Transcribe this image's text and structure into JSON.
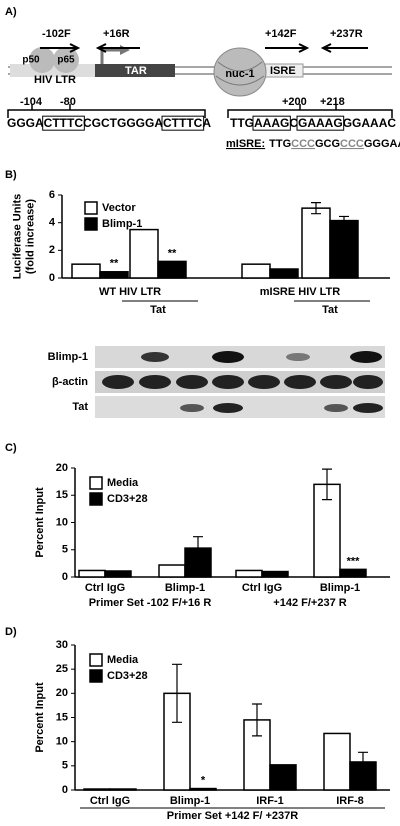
{
  "panels": [
    "A)",
    "B)",
    "C)",
    "D)"
  ],
  "diagram": {
    "primers": [
      "-102F",
      "+16R",
      "+142F",
      "+237R"
    ],
    "factors": [
      "p50",
      "p65"
    ],
    "elements": [
      "HIV LTR",
      "TAR",
      "nuc-1",
      "ISRE"
    ],
    "positions": [
      "-104",
      "-80",
      "+200",
      "+218"
    ],
    "sequence_ltr": [
      "GGGA",
      "CTTTC",
      "CGCTGGGGA",
      "CTTTC",
      "A"
    ],
    "sequence_isre": [
      "TTG",
      "AAAG",
      "C",
      "GAAAG",
      "GGAAAC"
    ],
    "mutant_label": "mISRE:",
    "mutant_sequence": [
      "TTG",
      "CCC",
      "GCG",
      "CCC",
      "GGGAAAC"
    ]
  },
  "blot": {
    "rows": [
      "Blimp-1",
      "β-actin",
      "Tat"
    ]
  },
  "chart_data": [
    {
      "type": "bar",
      "ylabel": [
        "Luciferase Units",
        "(fold increase)"
      ],
      "categories": [
        null,
        "Tat",
        null,
        "Tat"
      ],
      "group_labels": [
        "WT HIV LTR",
        "mISRE HIV LTR"
      ],
      "series": [
        {
          "name": "Vector",
          "color": "#ffffff",
          "values": [
            1,
            3.5,
            1,
            5.05
          ],
          "errors": [
            null,
            null,
            null,
            0.4
          ],
          "annotations": [
            null,
            null,
            null,
            null
          ]
        },
        {
          "name": "Blimp-1",
          "color": "#000000",
          "values": [
            0.45,
            1.2,
            0.65,
            4.15
          ],
          "errors": [
            null,
            null,
            null,
            0.3
          ],
          "annotations": [
            "**",
            "**",
            null,
            null
          ]
        }
      ],
      "ylim": [
        0,
        6
      ],
      "yticks": [
        0,
        2,
        4,
        6
      ]
    },
    {
      "type": "bar",
      "ylabel": [
        "Percent Input"
      ],
      "categories": [
        "Ctrl IgG",
        "Blimp-1",
        "Ctrl IgG",
        "Blimp-1"
      ],
      "group_labels": [
        "Primer Set -102 F/+16 R",
        "+142 F/+237 R"
      ],
      "series": [
        {
          "name": "Media",
          "color": "#ffffff",
          "values": [
            1.2,
            2.2,
            1.2,
            17
          ],
          "errors": [
            null,
            null,
            null,
            2.8
          ],
          "annotations": [
            null,
            null,
            null,
            null
          ]
        },
        {
          "name": "CD3+28",
          "color": "#000000",
          "values": [
            1.1,
            5.3,
            1.0,
            1.4
          ],
          "errors": [
            null,
            2.1,
            null,
            null
          ],
          "annotations": [
            null,
            null,
            null,
            "***"
          ]
        }
      ],
      "ylim": [
        0,
        20
      ],
      "yticks": [
        0,
        5,
        10,
        15,
        20
      ]
    },
    {
      "type": "bar",
      "ylabel": [
        "Percent Input"
      ],
      "categories": [
        "Ctrl IgG",
        "Blimp-1",
        "IRF-1",
        "IRF-8"
      ],
      "xlabel": "Primer Set +142 F/ +237R",
      "series": [
        {
          "name": "Media",
          "color": "#ffffff",
          "values": [
            0.2,
            20,
            14.5,
            11.7
          ],
          "errors": [
            null,
            6,
            3.3,
            null
          ],
          "annotations": [
            null,
            null,
            null,
            null
          ]
        },
        {
          "name": "CD3+28",
          "color": "#000000",
          "values": [
            0.2,
            0.3,
            5.2,
            5.8
          ],
          "errors": [
            null,
            null,
            null,
            2
          ],
          "annotations": [
            null,
            "*",
            null,
            null
          ]
        }
      ],
      "ylim": [
        0,
        30
      ],
      "yticks": [
        0,
        5,
        10,
        15,
        20,
        25,
        30
      ]
    }
  ]
}
